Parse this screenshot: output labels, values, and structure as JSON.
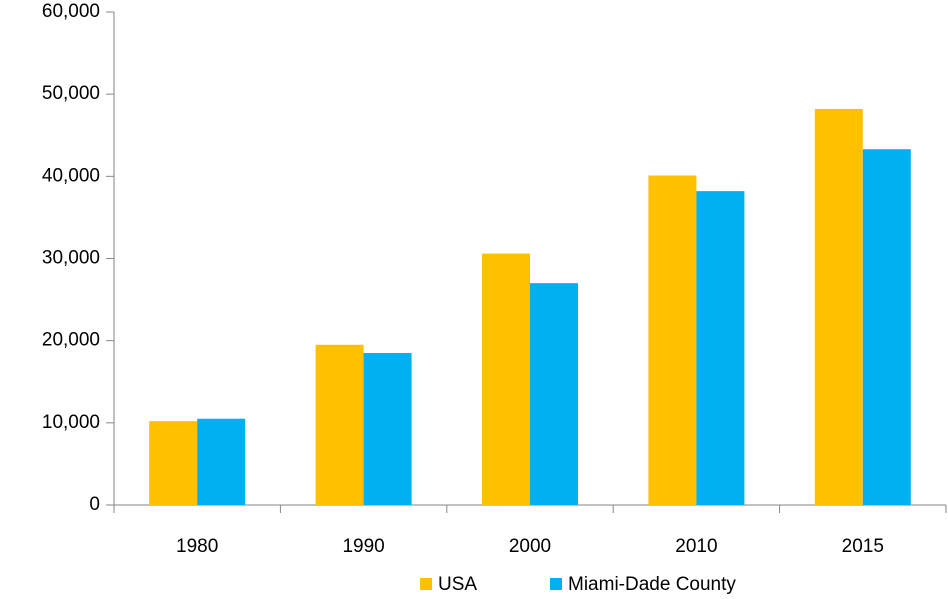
{
  "chart_data": {
    "type": "bar",
    "categories": [
      "1980",
      "1990",
      "2000",
      "2010",
      "2015"
    ],
    "series": [
      {
        "name": "USA",
        "color": "#FFC000",
        "values": [
          10200,
          19500,
          30600,
          40100,
          48200
        ]
      },
      {
        "name": "Miami-Dade County",
        "color": "#00B0F0",
        "values": [
          10500,
          18500,
          27000,
          38200,
          43300
        ]
      }
    ],
    "ylim": [
      0,
      60000
    ],
    "yticks": [
      0,
      {
        "value": 10000,
        "label": "10,000"
      },
      {
        "value": 20000,
        "label": "20,000"
      },
      {
        "value": 30000,
        "label": "30,000"
      },
      {
        "value": 40000,
        "label": "40,000"
      },
      {
        "value": 50000,
        "label": "50,000"
      },
      {
        "value": 60000,
        "label": "60,000"
      }
    ],
    "grid": false,
    "legend": "bottom"
  }
}
